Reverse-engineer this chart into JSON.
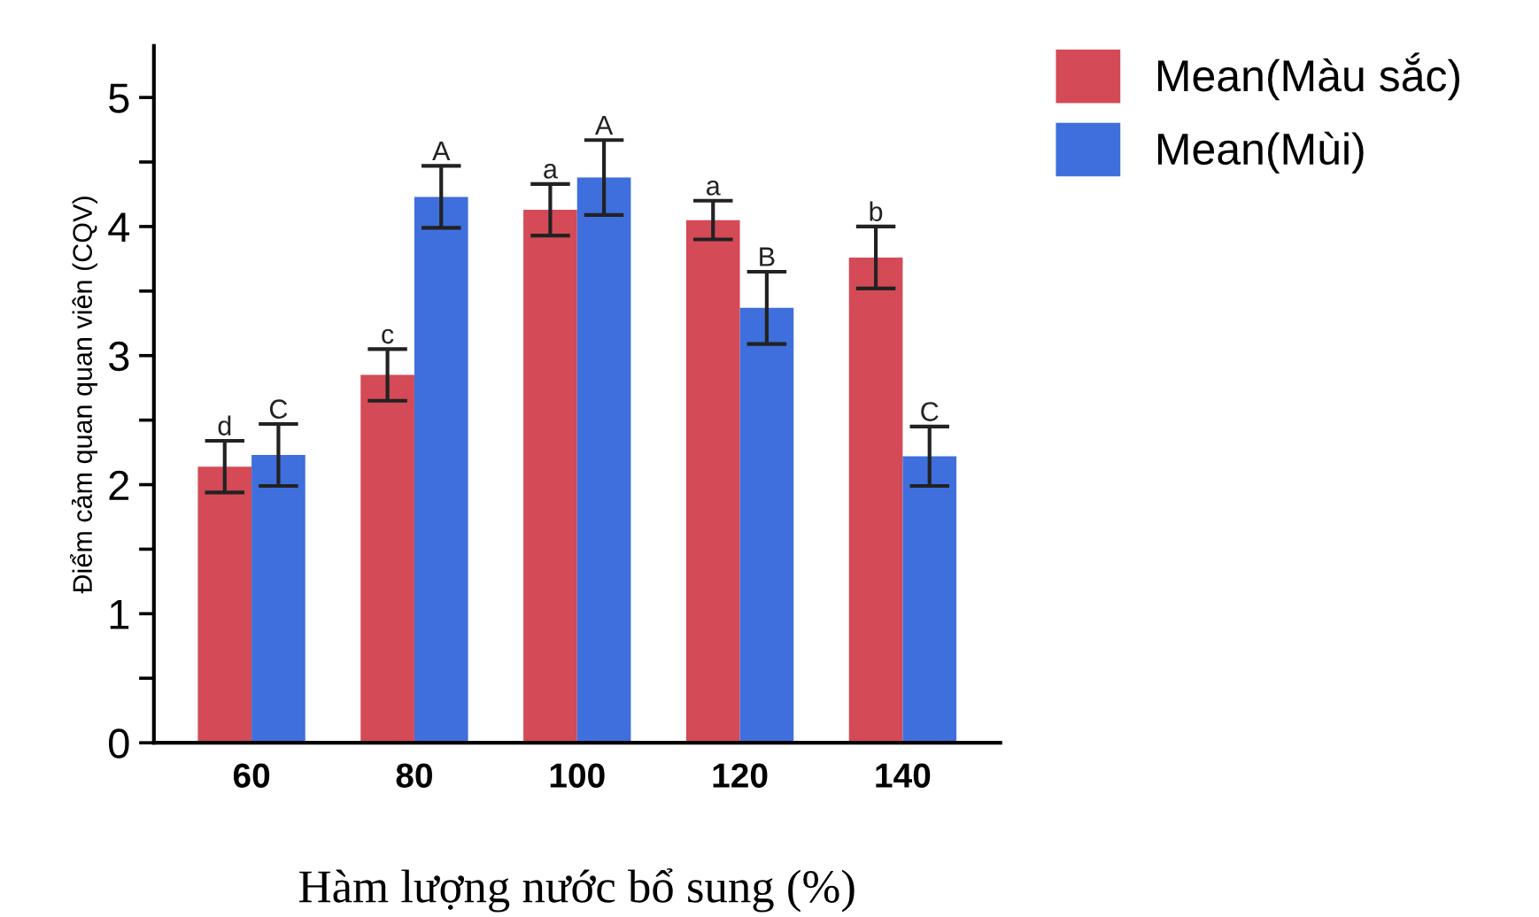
{
  "chart_data": {
    "type": "bar",
    "xlabel": "Hàm lượng nước bổ sung (%)",
    "ylabel": "Điểm cảm quan quan viên (CQV)",
    "categories": [
      "60",
      "80",
      "100",
      "120",
      "140"
    ],
    "series": [
      {
        "name": "Mean(Màu sắc)",
        "color": "#d44a57",
        "values": [
          2.14,
          2.85,
          4.13,
          4.05,
          3.76
        ],
        "errors": [
          0.2,
          0.2,
          0.2,
          0.15,
          0.24
        ]
      },
      {
        "name": "Mean(Mùi)",
        "color": "#3f6fdc",
        "values": [
          2.23,
          4.23,
          4.38,
          3.37,
          2.22
        ],
        "errors": [
          0.24,
          0.24,
          0.29,
          0.28,
          0.23
        ]
      }
    ],
    "annotations": [
      {
        "text": "d",
        "x": "60",
        "y": 2.34
      },
      {
        "text": "C",
        "x": "60",
        "y": 2.47
      },
      {
        "text": "c",
        "x": "80",
        "y": 3.05
      },
      {
        "text": "A",
        "x": "80",
        "y": 4.47
      },
      {
        "text": "a",
        "x": "100",
        "y": 4.33
      },
      {
        "text": "A",
        "x": "100",
        "y": 4.67
      },
      {
        "text": "a",
        "x": "120",
        "y": 4.2
      },
      {
        "text": "B",
        "x": "120",
        "y": 3.65
      },
      {
        "text": "b",
        "x": "140",
        "y": 4.0
      },
      {
        "text": "C",
        "x": "140",
        "y": 2.45
      }
    ],
    "ylim": [
      0,
      5.4
    ],
    "yticks": [
      0,
      {
        "value": 0.5,
        "label": null
      },
      1,
      {
        "value": 1.5,
        "label": null
      },
      2,
      {
        "value": 2.5,
        "label": null
      },
      3,
      {
        "value": 3.5,
        "label": null
      },
      4,
      {
        "value": 4.5,
        "label": null
      },
      5
    ],
    "grid": false,
    "legend": "top right"
  }
}
